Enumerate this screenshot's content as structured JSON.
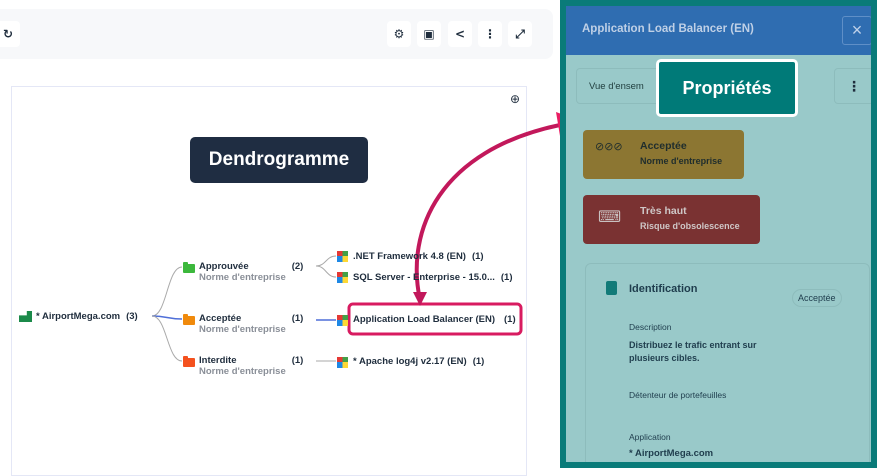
{
  "toolbar": {
    "icons": [
      "refresh-icon",
      "gear-icon",
      "print-icon",
      "share-icon",
      "more-vertical-icon",
      "expand-icon"
    ]
  },
  "canvas": {
    "zoom_icon": "zoom-in-icon"
  },
  "annotations": {
    "dendrogram": "Dendrogramme",
    "properties": "Propriétés"
  },
  "tree": {
    "root": {
      "label": "* AirportMega.com",
      "count": "(3)"
    },
    "branches": [
      {
        "label": "Approuvée",
        "sub": "Norme d'entreprise",
        "count": "(2)",
        "color": "#3cb83c",
        "leaves": [
          {
            "label": ".NET Framework 4.8 (EN)",
            "count": "(1)"
          },
          {
            "label": "SQL Server - Enterprise - 15.0...",
            "count": "(1)"
          }
        ]
      },
      {
        "label": "Acceptée",
        "sub": "Norme d'entreprise",
        "count": "(1)",
        "color": "#f08a0c",
        "leaves": [
          {
            "label": "Application Load Balancer (EN)",
            "count": "(1)"
          }
        ]
      },
      {
        "label": "Interdite",
        "sub": "Norme d'entreprise",
        "count": "(1)",
        "color": "#f4511e",
        "leaves": [
          {
            "label": "* Apache log4j v2.17 (EN)",
            "count": "(1)"
          }
        ]
      }
    ]
  },
  "panel": {
    "title": "Application Load Balancer (EN)",
    "close": "×",
    "tab": "Vue d'ensem",
    "status_card": {
      "title": "Acceptée",
      "subtitle": "Norme d'entreprise",
      "color": "#8c7632"
    },
    "risk_card": {
      "title": "Très haut",
      "subtitle": "Risque d'obsolescence",
      "color": "#7a3232"
    },
    "identification": {
      "title": "Identification",
      "badge": "Acceptée",
      "description_label": "Description",
      "description": "Distribuez le trafic entrant sur plusieurs cibles.",
      "owner_label": "Détenteur de portefeuilles",
      "application_label": "Application",
      "application": "* AirportMega.com"
    }
  },
  "colors": {
    "accent_pink": "#d81b60",
    "panel_border": "#0a7b79",
    "panel_header": "#2f6db1",
    "label_dark": "#1f2d42"
  }
}
